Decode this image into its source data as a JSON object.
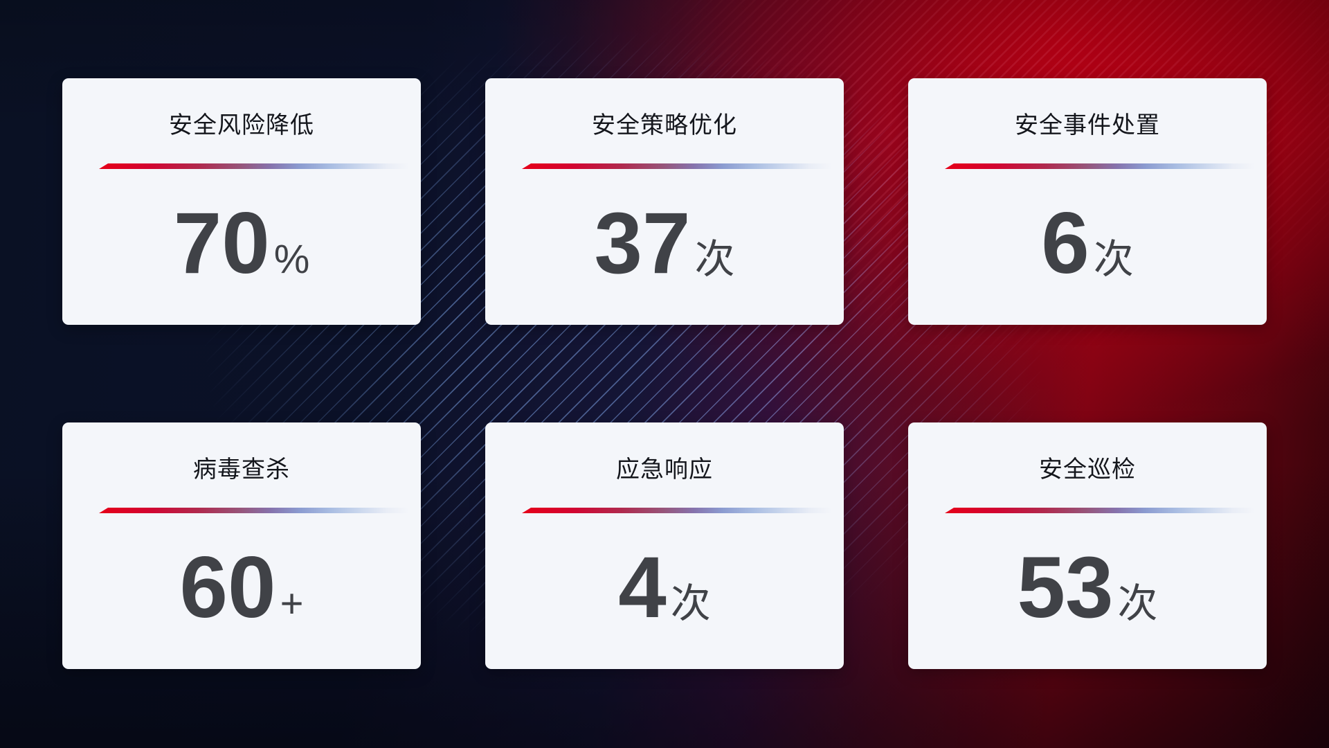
{
  "cards": [
    {
      "title": "安全风险降低",
      "value": "70",
      "unit": "%"
    },
    {
      "title": "安全策略优化",
      "value": "37",
      "unit": "次"
    },
    {
      "title": "安全事件处置",
      "value": "6",
      "unit": "次"
    },
    {
      "title": "病毒查杀",
      "value": "60",
      "unit": "+"
    },
    {
      "title": "应急响应",
      "value": "4",
      "unit": "次"
    },
    {
      "title": "安全巡检",
      "value": "53",
      "unit": "次"
    }
  ],
  "colors": {
    "card_background": "#f4f6fa",
    "title_text": "#14161c",
    "value_text": "#404247",
    "accent_line_start_red": "#e50019",
    "accent_line_mid_purple": "#8673ad",
    "accent_line_end_blue": "#a9bde2",
    "background_navy": "#0b1128",
    "background_red": "#c80016",
    "streak_blue": "#769ee4"
  }
}
